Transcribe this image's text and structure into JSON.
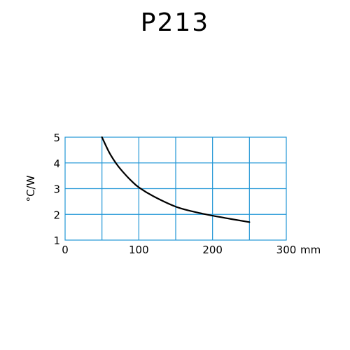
{
  "product": {
    "title": "P213"
  },
  "chart_data": {
    "type": "line",
    "title": "",
    "xlabel": "mm",
    "ylabel": "°C/W",
    "xlim": [
      0,
      300
    ],
    "ylim": [
      1,
      5
    ],
    "x_ticks": [
      0,
      100,
      200,
      300
    ],
    "x_tick_labels": [
      "0",
      "100",
      "200",
      "300"
    ],
    "y_ticks": [
      1,
      2,
      3,
      4,
      5
    ],
    "y_tick_labels": [
      "1",
      "2",
      "3",
      "4",
      "5"
    ],
    "grid": true,
    "grid_x_step": 50,
    "grid_y_step": 1,
    "colors": {
      "grid": "#2196d6",
      "line": "#000000"
    },
    "series": [
      {
        "x": [
          50,
          60,
          70,
          80,
          90,
          100,
          120,
          150,
          175,
          200,
          225,
          250
        ],
        "y": [
          5.0,
          4.4,
          3.95,
          3.6,
          3.3,
          3.05,
          2.7,
          2.3,
          2.1,
          1.95,
          1.82,
          1.7
        ]
      }
    ]
  }
}
